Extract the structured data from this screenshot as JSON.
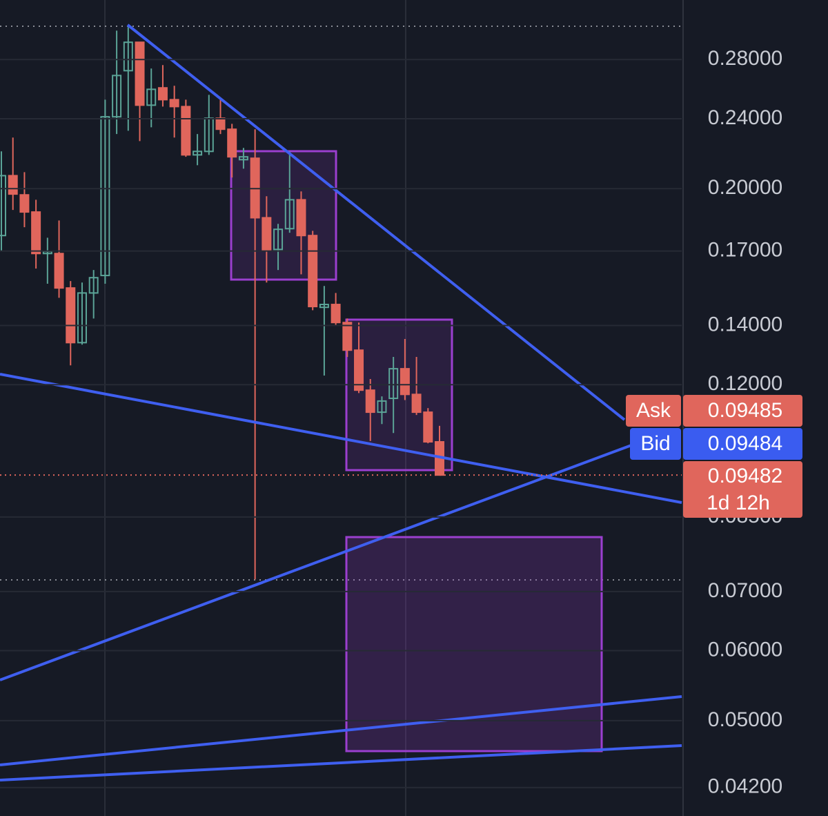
{
  "chart_data": {
    "type": "candlestick",
    "log_scale": true,
    "ylim": [
      0.039,
      0.327
    ],
    "yticks": [
      {
        "value": 0.28,
        "label": "0.28000"
      },
      {
        "value": 0.24,
        "label": "0.24000"
      },
      {
        "value": 0.2,
        "label": "0.20000"
      },
      {
        "value": 0.17,
        "label": "0.17000"
      },
      {
        "value": 0.14,
        "label": "0.14000"
      },
      {
        "value": 0.12,
        "label": "0.12000"
      },
      {
        "value": 0.085,
        "label": "0.08500"
      },
      {
        "value": 0.07,
        "label": "0.07000"
      },
      {
        "value": 0.06,
        "label": "0.06000"
      },
      {
        "value": 0.05,
        "label": "0.05000"
      },
      {
        "value": 0.042,
        "label": "0.04200"
      }
    ],
    "grid": true,
    "colors": {
      "up": "#5ba497",
      "down": "#e0665c"
    },
    "open": [
      0.177,
      0.2069,
      0.1968,
      0.1882,
      0.1689,
      0.1689,
      0.1544,
      0.1339,
      0.1524,
      0.1595,
      0.2412,
      0.272,
      0.2929,
      0.2486,
      0.2601,
      0.2522,
      0.2477,
      0.2184,
      0.2204,
      0.2403,
      0.2335,
      0.2157,
      0.2165,
      0.1854,
      0.1707,
      0.1802,
      0.1943,
      0.177,
      0.1468,
      0.1479,
      0.1411,
      0.1313,
      0.1183,
      0.1117,
      0.1158,
      0.1251,
      0.117,
      0.1117,
      0.1034
    ],
    "high": [
      0.2204,
      0.2285,
      0.2088,
      0.1943,
      0.176,
      0.1841,
      0.1572,
      0.1566,
      0.1618,
      0.2522,
      0.3019,
      0.3047,
      0.2929,
      0.2735,
      0.276,
      0.2615,
      0.2522,
      0.2306,
      0.2554,
      0.2522,
      0.2368,
      0.2224,
      0.2335,
      0.1961,
      0.1825,
      0.2204,
      0.1986,
      0.1792,
      0.1552,
      0.1524,
      0.1426,
      0.1411,
      0.1218,
      0.1164,
      0.129,
      0.1352,
      0.129,
      0.1129,
      0.1078
    ],
    "low": [
      0.1698,
      0.1892,
      0.1809,
      0.1624,
      0.1561,
      0.1505,
      0.1262,
      0.1332,
      0.1426,
      0.1561,
      0.2306,
      0.2326,
      0.2264,
      0.2347,
      0.2477,
      0.2285,
      0.2173,
      0.2126,
      0.2184,
      0.2306,
      0.2059,
      0.2107,
      0.07226,
      0.1566,
      0.1618,
      0.1783,
      0.16,
      0.1457,
      0.1229,
      0.1401,
      0.129,
      0.1174,
      0.1036,
      0.1083,
      0.1058,
      0.1153,
      0.1109,
      0.103,
      0.09482
    ],
    "close": [
      0.2069,
      0.1972,
      0.1882,
      0.1689,
      0.1698,
      0.1544,
      0.1339,
      0.1524,
      0.1586,
      0.2412,
      0.2686,
      0.2929,
      0.2486,
      0.2591,
      0.2522,
      0.2477,
      0.2184,
      0.2204,
      0.2403,
      0.2335,
      0.2173,
      0.2173,
      0.1854,
      0.1704,
      0.1799,
      0.1943,
      0.177,
      0.1471,
      0.1479,
      0.1411,
      0.1313,
      0.1183,
      0.1117,
      0.115,
      0.1251,
      0.117,
      0.1117,
      0.1034,
      0.09482
    ],
    "quotes": {
      "ask_label": "Ask",
      "ask": 0.09485,
      "bid_label": "Bid",
      "bid": 0.09484,
      "last": 0.09482,
      "countdown": "1d 12h"
    }
  }
}
